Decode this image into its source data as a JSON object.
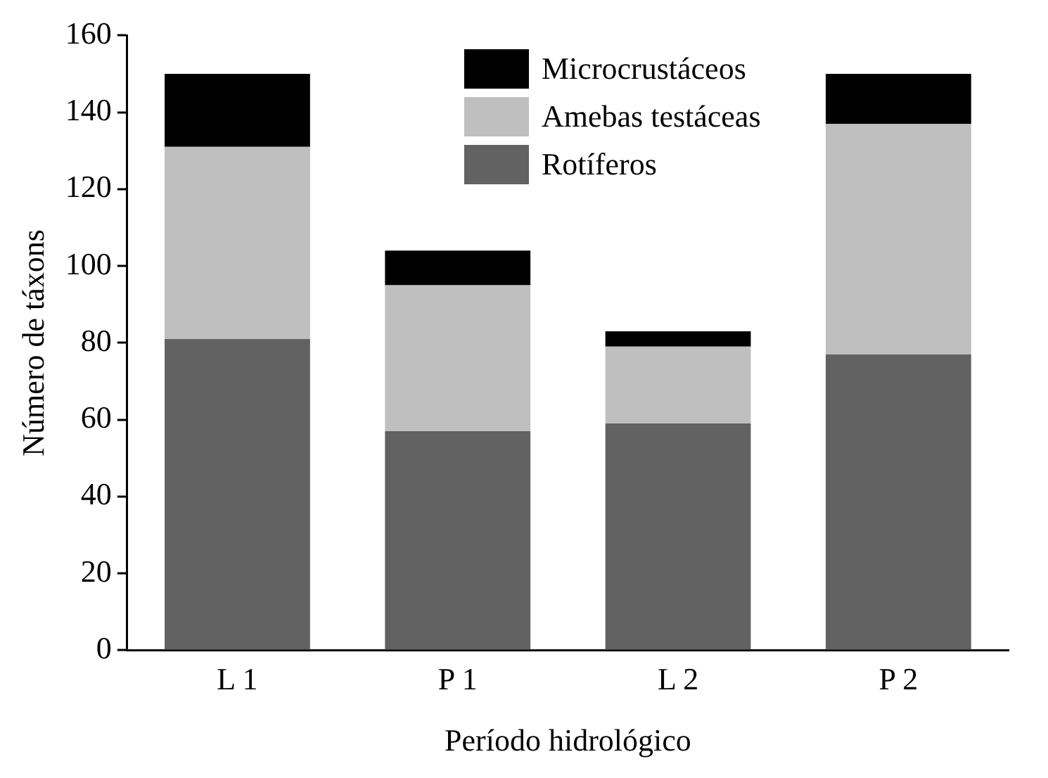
{
  "chart_data": {
    "type": "bar",
    "xlabel": "Período hidrológico",
    "ylabel": "Número de táxons",
    "categories": [
      "L 1",
      "P 1",
      "L 2",
      "P 2"
    ],
    "series": [
      {
        "name": "Rotíferos",
        "color": "#626262",
        "values": [
          81,
          57,
          59,
          77
        ]
      },
      {
        "name": "Amebas testáceas",
        "color": "#bfbfbf",
        "values": [
          50,
          38,
          20,
          60
        ]
      },
      {
        "name": "Microcrustáceos",
        "color": "#000000",
        "values": [
          19,
          9,
          4,
          13
        ]
      }
    ],
    "stacked": true,
    "ylim": [
      0,
      160
    ],
    "yticks": [
      0,
      20,
      40,
      60,
      80,
      100,
      120,
      140,
      160
    ],
    "grid": false,
    "legend": "top right"
  }
}
